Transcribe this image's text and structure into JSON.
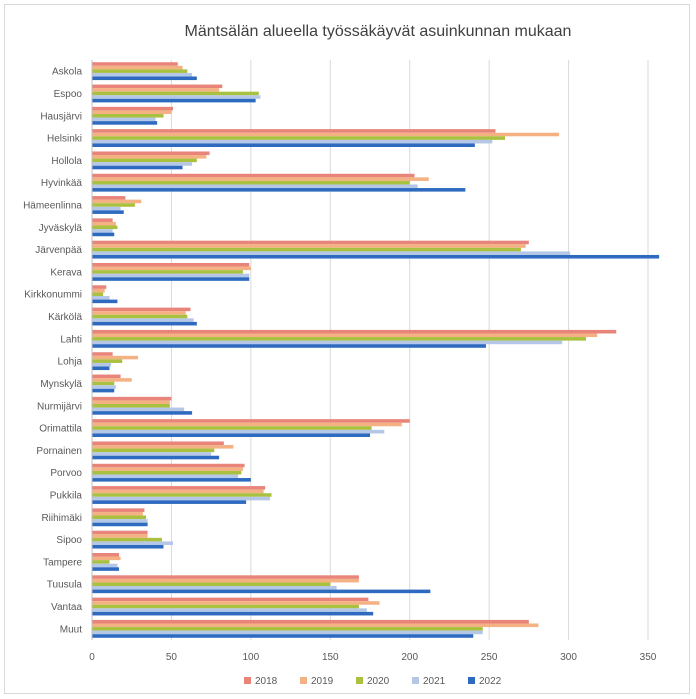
{
  "chart_data": {
    "type": "bar",
    "orientation": "horizontal",
    "title": "Mäntsälän alueella työssäkäyvät asuinkunnan mukaan",
    "xlabel": "",
    "ylabel": "",
    "xlim": [
      0,
      350
    ],
    "xticks": [
      "0",
      "50",
      "100",
      "150",
      "200",
      "250",
      "300",
      "350"
    ],
    "grid": true,
    "legend_position": "bottom",
    "categories": [
      "Askola",
      "Espoo",
      "Hausjärvi",
      "Helsinki",
      "Hollola",
      "Hyvinkää",
      "Hämeenlinna",
      "Jyväskylä",
      "Järvenpää",
      "Kerava",
      "Kirkkonummi",
      "Kärkölä",
      "Lahti",
      "Lohja",
      "Mynskylä",
      "Nurmijärvi",
      "Orimattila",
      "Pornainen",
      "Porvoo",
      "Pukkila",
      "Riihimäki",
      "Sipoo",
      "Tampere",
      "Tuusula",
      "Vantaa",
      "Muut"
    ],
    "series": [
      {
        "name": "2018",
        "color": "#e8847a",
        "values": [
          54,
          82,
          51,
          254,
          74,
          203,
          21,
          13,
          275,
          99,
          9,
          62,
          330,
          13,
          18,
          50,
          200,
          83,
          96,
          109,
          33,
          35,
          17,
          168,
          174,
          275
        ]
      },
      {
        "name": "2019",
        "color": "#f4b183",
        "values": [
          57,
          80,
          50,
          294,
          72,
          212,
          31,
          15,
          273,
          100,
          8,
          59,
          318,
          29,
          25,
          49,
          195,
          89,
          95,
          108,
          32,
          35,
          18,
          168,
          181,
          281
        ]
      },
      {
        "name": "2020",
        "color": "#a9c13e",
        "values": [
          60,
          105,
          45,
          260,
          66,
          200,
          27,
          16,
          270,
          95,
          7,
          60,
          311,
          19,
          14,
          49,
          176,
          77,
          94,
          113,
          34,
          44,
          11,
          150,
          168,
          246
        ]
      },
      {
        "name": "2021",
        "color": "#b4c7e7",
        "values": [
          63,
          106,
          40,
          252,
          63,
          205,
          18,
          13,
          301,
          99,
          11,
          64,
          296,
          12,
          15,
          58,
          184,
          75,
          92,
          112,
          35,
          51,
          16,
          154,
          173,
          246
        ]
      },
      {
        "name": "2022",
        "color": "#2e6bc0",
        "values": [
          66,
          103,
          41,
          241,
          57,
          235,
          20,
          14,
          357,
          99,
          16,
          66,
          248,
          11,
          14,
          63,
          175,
          80,
          100,
          97,
          35,
          45,
          17,
          213,
          177,
          240
        ]
      }
    ]
  }
}
